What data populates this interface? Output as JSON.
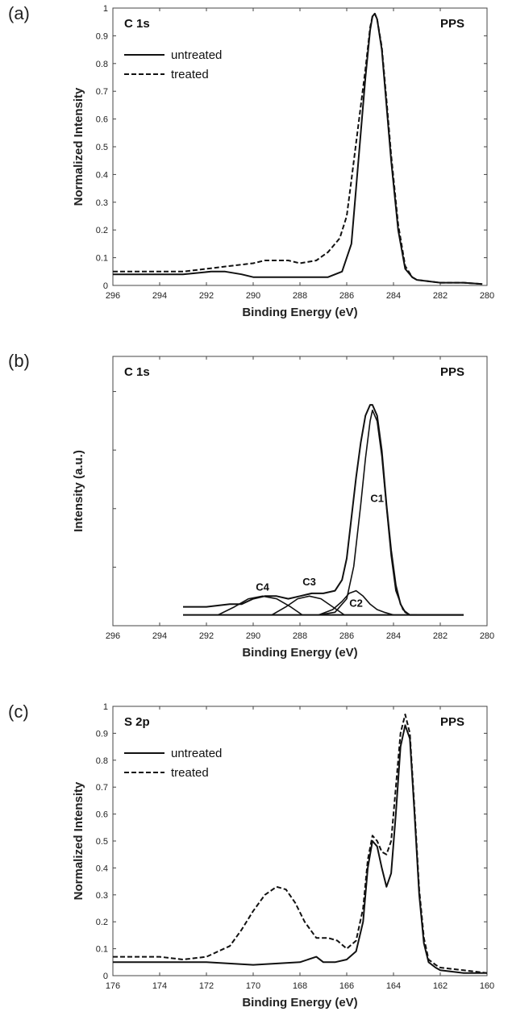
{
  "chart_data": [
    {
      "type": "line",
      "panel_label": "(a)",
      "corner_left": "C 1s",
      "corner_right": "PPS",
      "xlabel": "Binding Energy (eV)",
      "ylabel": "Normalized Intensity",
      "xlim": [
        296,
        280
      ],
      "ylim": [
        0,
        1
      ],
      "xticks": [
        "296",
        "294",
        "292",
        "290",
        "288",
        "286",
        "284",
        "282",
        "280"
      ],
      "yticks": [
        "0",
        "0.1",
        "0.2",
        "0.3",
        "0.4",
        "0.5",
        "0.6",
        "0.7",
        "0.8",
        "0.9",
        "1"
      ],
      "legend": "top-left",
      "series": [
        {
          "name": "untreated",
          "style": "solid",
          "x": [
            296,
            293,
            291.8,
            291.2,
            290.5,
            290,
            288,
            286.8,
            286.2,
            285.8,
            285.6,
            285.4,
            285.2,
            285.0,
            284.9,
            284.8,
            284.7,
            284.5,
            284.3,
            284.1,
            283.8,
            283.5,
            283.2,
            283.0,
            282,
            281,
            280.2
          ],
          "y": [
            0.04,
            0.04,
            0.05,
            0.05,
            0.04,
            0.03,
            0.03,
            0.03,
            0.05,
            0.15,
            0.35,
            0.55,
            0.75,
            0.92,
            0.97,
            0.98,
            0.96,
            0.85,
            0.65,
            0.45,
            0.2,
            0.06,
            0.03,
            0.02,
            0.01,
            0.01,
            0.005
          ]
        },
        {
          "name": "treated",
          "style": "dashed",
          "x": [
            296,
            293,
            292,
            291,
            290,
            289.5,
            288.5,
            288,
            287.3,
            286.8,
            286.3,
            286.0,
            285.8,
            285.5,
            285.2,
            285.0,
            284.9,
            284.8,
            284.7,
            284.5,
            284.3,
            284.1,
            283.8,
            283.5,
            283.2,
            283.0,
            282,
            281,
            280.2
          ],
          "y": [
            0.05,
            0.05,
            0.06,
            0.07,
            0.08,
            0.09,
            0.09,
            0.08,
            0.09,
            0.12,
            0.17,
            0.25,
            0.38,
            0.58,
            0.78,
            0.93,
            0.97,
            0.98,
            0.96,
            0.86,
            0.67,
            0.47,
            0.22,
            0.07,
            0.03,
            0.02,
            0.01,
            0.01,
            0.005
          ]
        }
      ]
    },
    {
      "type": "line",
      "panel_label": "(b)",
      "corner_left": "C 1s",
      "corner_right": "PPS",
      "xlabel": "Binding Energy (eV)",
      "ylabel": "Intensity (a.u.)",
      "xlim": [
        296,
        280
      ],
      "ylim": [
        0,
        1
      ],
      "xticks": [
        "296",
        "294",
        "292",
        "290",
        "288",
        "286",
        "284",
        "282",
        "280"
      ],
      "yticks": [],
      "peak_labels": [
        {
          "text": "C1",
          "x": 284.7,
          "y": 0.46
        },
        {
          "text": "C2",
          "x": 285.6,
          "y": 0.07
        },
        {
          "text": "C3",
          "x": 287.6,
          "y": 0.15
        },
        {
          "text": "C4",
          "x": 289.6,
          "y": 0.13
        }
      ],
      "series": [
        {
          "name": "envelope",
          "style": "solid",
          "x": [
            293,
            292,
            291,
            290.5,
            290,
            289.5,
            289,
            288.5,
            288,
            287.5,
            287,
            286.5,
            286.2,
            286.0,
            285.8,
            285.6,
            285.4,
            285.2,
            285.0,
            284.9,
            284.7,
            284.5,
            284.3,
            284.1,
            283.9,
            283.7,
            283.5,
            283.3,
            283.0,
            282,
            281
          ],
          "y": [
            0.07,
            0.07,
            0.08,
            0.08,
            0.1,
            0.11,
            0.11,
            0.1,
            0.11,
            0.12,
            0.12,
            0.13,
            0.17,
            0.25,
            0.4,
            0.55,
            0.68,
            0.78,
            0.82,
            0.82,
            0.78,
            0.65,
            0.45,
            0.28,
            0.15,
            0.08,
            0.05,
            0.04,
            0.04,
            0.04,
            0.04
          ]
        },
        {
          "name": "C1",
          "style": "thin",
          "x": [
            287.2,
            286.5,
            286.0,
            285.7,
            285.4,
            285.2,
            285.0,
            284.9,
            284.7,
            284.5,
            284.3,
            284.1,
            283.9,
            283.6,
            283.3,
            283.0
          ],
          "y": [
            0.04,
            0.05,
            0.1,
            0.22,
            0.45,
            0.62,
            0.76,
            0.8,
            0.76,
            0.63,
            0.44,
            0.26,
            0.13,
            0.06,
            0.04,
            0.04
          ]
        },
        {
          "name": "C2",
          "style": "thin",
          "x": [
            287.2,
            286.6,
            286.2,
            285.9,
            285.6,
            285.3,
            285.0,
            284.7,
            284.4,
            284.0
          ],
          "y": [
            0.04,
            0.06,
            0.09,
            0.12,
            0.13,
            0.11,
            0.08,
            0.06,
            0.05,
            0.04
          ]
        },
        {
          "name": "C3",
          "style": "thin",
          "x": [
            289.2,
            288.6,
            288.1,
            287.6,
            287.1,
            286.6,
            286.1
          ],
          "y": [
            0.04,
            0.07,
            0.1,
            0.11,
            0.1,
            0.07,
            0.04
          ]
        },
        {
          "name": "C4",
          "style": "thin",
          "x": [
            291.5,
            290.8,
            290.2,
            289.6,
            289.0,
            288.4,
            287.9
          ],
          "y": [
            0.04,
            0.07,
            0.1,
            0.11,
            0.1,
            0.07,
            0.04
          ]
        }
      ]
    },
    {
      "type": "line",
      "panel_label": "(c)",
      "corner_left": "S 2p",
      "corner_right": "PPS",
      "xlabel": "Binding Energy (eV)",
      "ylabel": "Normalized Intensity",
      "xlim": [
        176,
        160
      ],
      "ylim": [
        0,
        1
      ],
      "xticks": [
        "176",
        "174",
        "172",
        "170",
        "168",
        "166",
        "164",
        "162",
        "160"
      ],
      "yticks": [
        "0",
        "0.1",
        "0.2",
        "0.3",
        "0.4",
        "0.5",
        "0.6",
        "0.7",
        "0.8",
        "0.9",
        "1"
      ],
      "legend": "top-left",
      "series": [
        {
          "name": "untreated",
          "style": "solid",
          "x": [
            176,
            174,
            172,
            170,
            168,
            167.3,
            167.0,
            166.5,
            166,
            165.6,
            165.3,
            165.1,
            164.9,
            164.7,
            164.5,
            164.3,
            164.1,
            163.9,
            163.7,
            163.5,
            163.3,
            163.1,
            162.9,
            162.7,
            162.5,
            162.2,
            162,
            161,
            160
          ],
          "y": [
            0.05,
            0.05,
            0.05,
            0.04,
            0.05,
            0.07,
            0.05,
            0.05,
            0.06,
            0.09,
            0.2,
            0.4,
            0.5,
            0.48,
            0.4,
            0.33,
            0.38,
            0.6,
            0.85,
            0.93,
            0.88,
            0.6,
            0.3,
            0.12,
            0.05,
            0.03,
            0.02,
            0.01,
            0.01
          ]
        },
        {
          "name": "treated",
          "style": "dashed",
          "x": [
            176,
            175,
            174,
            173,
            172,
            171,
            170.5,
            170,
            169.5,
            169.0,
            168.6,
            168.2,
            167.8,
            167.3,
            166.8,
            166.4,
            166,
            165.6,
            165.3,
            165.1,
            164.9,
            164.7,
            164.5,
            164.3,
            164.1,
            163.9,
            163.7,
            163.5,
            163.3,
            163.1,
            162.9,
            162.7,
            162.5,
            162.2,
            162,
            161,
            160
          ],
          "y": [
            0.07,
            0.07,
            0.07,
            0.06,
            0.07,
            0.11,
            0.17,
            0.24,
            0.3,
            0.33,
            0.32,
            0.27,
            0.2,
            0.14,
            0.14,
            0.13,
            0.1,
            0.13,
            0.25,
            0.43,
            0.52,
            0.5,
            0.46,
            0.45,
            0.5,
            0.7,
            0.9,
            0.97,
            0.9,
            0.62,
            0.32,
            0.14,
            0.06,
            0.04,
            0.03,
            0.02,
            0.01
          ]
        }
      ]
    }
  ]
}
